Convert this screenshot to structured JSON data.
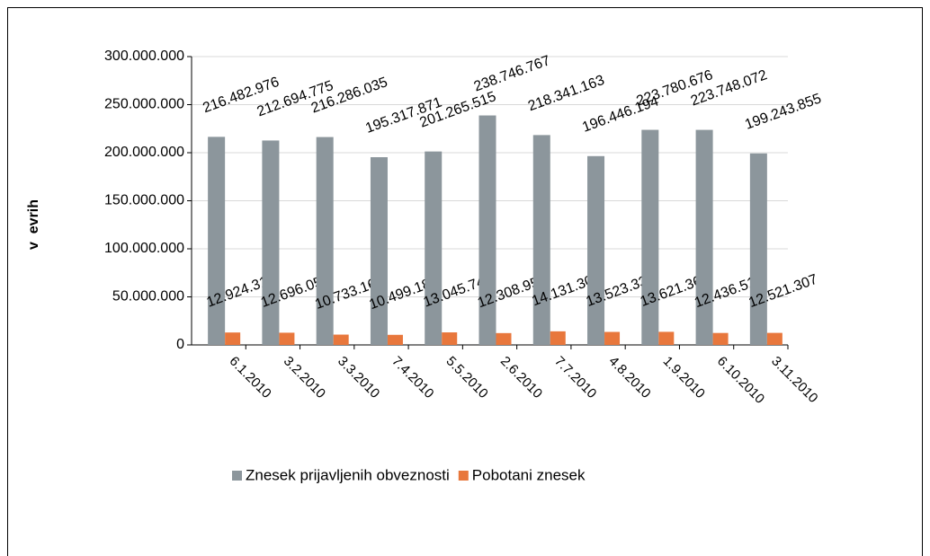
{
  "chart_data": {
    "type": "bar",
    "y_label": "v  evrih",
    "categories": [
      "6.1.2010",
      "3.2.2010",
      "3.3.2010",
      "7.4.2010",
      "5.5.2010",
      "2.6.2010",
      "7.7.2010",
      "4.8.2010",
      "1.9.2010",
      "6.10.2010",
      "3.11.2010"
    ],
    "series": [
      {
        "name": "Znesek prijavljenih obveznosti",
        "color": "#8c969c",
        "values": [
          216482976,
          212694775,
          216286035,
          195317871,
          201265515,
          238746767,
          218341163,
          196446194,
          223780676,
          223748072,
          199243855
        ],
        "value_labels": [
          "216.482.976",
          "212.694.775",
          "216.286.035",
          "195.317.871",
          "201.265.515",
          "238.746.767",
          "218.341.163",
          "196.446.194",
          "223.780.676",
          "223.748.072",
          "199.243.855"
        ]
      },
      {
        "name": "Pobotani znesek",
        "color": "#e8773c",
        "values": [
          12924313,
          12696051,
          10733165,
          10499183,
          13045741,
          12308953,
          14131309,
          13523335,
          13621363,
          12436513,
          12521307
        ],
        "value_labels": [
          "12.924.313",
          "12.696.051",
          "10.733.165",
          "10.499.183",
          "13.045.741",
          "12.308.953",
          "14.131.309",
          "13.523.335",
          "13.621.363",
          "12.436.513",
          "12.521.307"
        ]
      }
    ],
    "ylim": [
      0,
      300000000
    ],
    "yticks": [
      0,
      {
        "value": 50000000,
        "label": "50.000.000"
      },
      {
        "value": 100000000,
        "label": "100.000.000"
      },
      {
        "value": 150000000,
        "label": "150.000.000"
      },
      {
        "value": 200000000,
        "label": "200.000.000"
      },
      {
        "value": 250000000,
        "label": "250.000.000"
      },
      {
        "value": 300000000,
        "label": "300.000.000"
      }
    ],
    "grid": true,
    "legend": "bottom"
  }
}
